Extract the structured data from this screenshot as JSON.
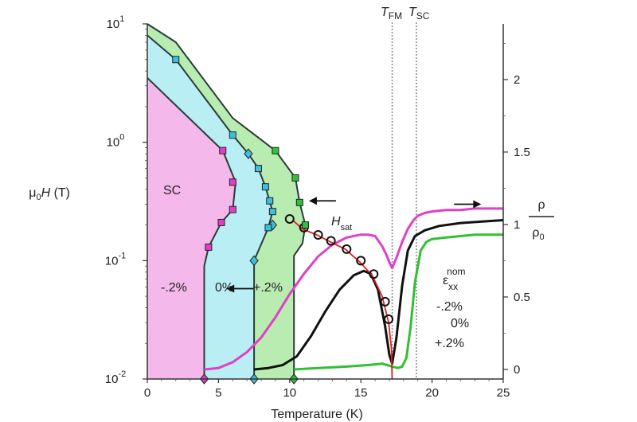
{
  "chart_data": {
    "type": "line",
    "title": "",
    "xlabel": "Temperature (K)",
    "x_range": [
      0,
      25
    ],
    "x_ticks": [
      "0",
      "5",
      "10",
      "15",
      "20",
      "25"
    ],
    "y_left": {
      "label_main": "μ",
      "label_sub": "0",
      "label_var": "H",
      "label_unit": " (T)",
      "scale": "log",
      "range": [
        0.01,
        10
      ],
      "ticks": [
        {
          "value": 0.01,
          "base": "10",
          "exp": "-2"
        },
        {
          "value": 0.1,
          "base": "10",
          "exp": "-1"
        },
        {
          "value": 1,
          "base": "10",
          "exp": "0"
        },
        {
          "value": 10,
          "base": "10",
          "exp": "1"
        }
      ]
    },
    "y_right": {
      "label_num": "ρ",
      "label_den": "ρ",
      "label_den_sub": "0",
      "range": [
        0,
        2.45
      ],
      "ticks": [
        "0",
        "0.5",
        "1",
        "1.5",
        "2"
      ]
    },
    "temperature_markers": [
      {
        "name": "T",
        "sub": "FM",
        "x": 17.2
      },
      {
        "name": "T",
        "sub": "SC",
        "x": 18.9
      }
    ],
    "regions": [
      {
        "label": "SC",
        "color": "#f5b8ea",
        "at": [
          2.5,
          0.45
        ]
      },
      {
        "label": "-.2%",
        "color": "#f5b8ea",
        "at": [
          2.0,
          0.034
        ]
      },
      {
        "label": "0%",
        "color": "#b8eef4",
        "at": [
          5.5,
          0.034
        ]
      },
      {
        "label": "+.2%",
        "color": "#b9ecb0",
        "at": [
          8.9,
          0.034
        ]
      }
    ],
    "boundaries": [
      {
        "strain": "-.2%",
        "color": "#e040c8",
        "x": [
          0,
          5.3,
          6.2,
          6.0,
          5.2,
          4.3,
          4.0,
          4.0
        ],
        "y": [
          3.5,
          0.85,
          0.46,
          0.27,
          0.21,
          0.13,
          0.09,
          0.01
        ]
      },
      {
        "strain": "0%",
        "color": "#3cc0dc",
        "x": [
          0,
          2.0,
          6.0,
          7.1,
          7.8,
          8.3,
          8.8,
          8.5,
          7.5,
          7.5
        ],
        "y": [
          8.0,
          5.0,
          1.15,
          0.8,
          0.6,
          0.42,
          0.26,
          0.19,
          0.1,
          0.01
        ]
      },
      {
        "strain": "+.2%",
        "color": "#30c040",
        "x": [
          0,
          2.0,
          6.0,
          9.0,
          10.4,
          10.7,
          11.1,
          10.9,
          10.3,
          10.3
        ],
        "y": [
          10,
          7.0,
          1.6,
          0.85,
          0.5,
          0.31,
          0.2,
          0.14,
          0.11,
          0.01
        ]
      }
    ],
    "boundary_markers": [
      {
        "series": "-.2%",
        "shape": "square",
        "x": 5.3,
        "y": 0.85
      },
      {
        "series": "-.2%",
        "shape": "square",
        "x": 6.0,
        "y": 0.46
      },
      {
        "series": "-.2%",
        "shape": "square",
        "x": 6.0,
        "y": 0.27
      },
      {
        "series": "-.2%",
        "shape": "square",
        "x": 5.2,
        "y": 0.21
      },
      {
        "series": "-.2%",
        "shape": "square",
        "x": 4.3,
        "y": 0.13
      },
      {
        "series": "-.2%",
        "shape": "diamond",
        "x": 4.0,
        "y": 0.01
      },
      {
        "series": "0%",
        "shape": "square",
        "x": 2.0,
        "y": 5.0
      },
      {
        "series": "0%",
        "shape": "square",
        "x": 6.0,
        "y": 1.15
      },
      {
        "series": "0%",
        "shape": "diamond",
        "x": 7.1,
        "y": 0.8
      },
      {
        "series": "0%",
        "shape": "square",
        "x": 7.8,
        "y": 0.6
      },
      {
        "series": "0%",
        "shape": "square",
        "x": 8.3,
        "y": 0.42
      },
      {
        "series": "0%",
        "shape": "square",
        "x": 8.6,
        "y": 0.32
      },
      {
        "series": "0%",
        "shape": "square",
        "x": 8.8,
        "y": 0.26
      },
      {
        "series": "0%",
        "shape": "diamond",
        "x": 8.8,
        "y": 0.2
      },
      {
        "series": "0%",
        "shape": "square",
        "x": 8.5,
        "y": 0.19
      },
      {
        "series": "0%",
        "shape": "diamond",
        "x": 7.5,
        "y": 0.1
      },
      {
        "series": "0%",
        "shape": "diamond",
        "x": 7.5,
        "y": 0.01
      },
      {
        "series": "+.2%",
        "shape": "square",
        "x": 9.0,
        "y": 0.85
      },
      {
        "series": "+.2%",
        "shape": "square",
        "x": 10.4,
        "y": 0.5
      },
      {
        "series": "+.2%",
        "shape": "square",
        "x": 10.7,
        "y": 0.31
      },
      {
        "series": "+.2%",
        "shape": "square",
        "x": 11.1,
        "y": 0.2
      },
      {
        "series": "+.2%",
        "shape": "diamond",
        "x": 10.3,
        "y": 0.01
      }
    ],
    "hsat": {
      "label": "H",
      "label_sub": "sat",
      "color": "#e02020",
      "x": [
        10.2,
        10.9,
        11.9,
        12.8,
        13.9,
        14.9,
        15.8,
        16.5,
        16.95,
        17.15,
        17.2
      ],
      "y": [
        0.22,
        0.185,
        0.165,
        0.145,
        0.125,
        0.098,
        0.075,
        0.05,
        0.03,
        0.018,
        0.01
      ],
      "circles_x": [
        10.0,
        11.0,
        12.0,
        12.9,
        14.0,
        15.0,
        15.9,
        16.7,
        16.95
      ],
      "circles_y": [
        0.225,
        0.19,
        0.165,
        0.147,
        0.125,
        0.1,
        0.077,
        0.045,
        0.032
      ]
    },
    "resistivity_title": "ε",
    "resistivity_title_sub": "xx",
    "resistivity_title_sup": "nom",
    "resistivity": [
      {
        "name": "-.2%",
        "color": "#e040c8",
        "x": [
          4.0,
          5.0,
          6.0,
          7.0,
          8.0,
          9.0,
          10.0,
          11.0,
          12.0,
          13.0,
          14.0,
          15.0,
          15.5,
          16.0,
          16.5,
          16.8,
          17.0,
          17.2,
          17.5,
          17.9,
          18.3,
          18.7,
          19.0,
          19.5,
          20.0,
          21.0,
          22.0,
          23.0,
          25.0
        ],
        "y": [
          0,
          0.01,
          0.05,
          0.12,
          0.22,
          0.36,
          0.52,
          0.66,
          0.78,
          0.86,
          0.91,
          0.93,
          0.93,
          0.92,
          0.85,
          0.79,
          0.74,
          0.7,
          0.77,
          0.88,
          0.97,
          1.03,
          1.06,
          1.08,
          1.09,
          1.1,
          1.1,
          1.11,
          1.11
        ]
      },
      {
        "name": "0%",
        "color": "#111111",
        "x": [
          7.5,
          8.5,
          9.5,
          10.5,
          11.5,
          12.5,
          13.5,
          14.5,
          15.2,
          15.7,
          16.2,
          16.7,
          17.0,
          17.2,
          17.5,
          17.9,
          18.3,
          18.8,
          19.5,
          20.5,
          22.0,
          23.5,
          25.0
        ],
        "y": [
          0,
          0.01,
          0.03,
          0.09,
          0.23,
          0.4,
          0.55,
          0.65,
          0.68,
          0.66,
          0.55,
          0.3,
          0.1,
          0.04,
          0.22,
          0.58,
          0.82,
          0.92,
          0.96,
          0.99,
          1.01,
          1.02,
          1.03
        ]
      },
      {
        "name": "+.2%",
        "color": "#30c030",
        "x": [
          10.3,
          12.0,
          14.0,
          15.5,
          16.5,
          17.2,
          17.6,
          17.9,
          18.2,
          18.5,
          18.8,
          19.2,
          19.6,
          20.0,
          21.0,
          22.0,
          23.0,
          25.0
        ],
        "y": [
          0,
          0.01,
          0.02,
          0.03,
          0.04,
          0.02,
          0.01,
          0.02,
          0.08,
          0.3,
          0.6,
          0.82,
          0.88,
          0.9,
          0.91,
          0.92,
          0.93,
          0.93
        ]
      }
    ],
    "arrows": [
      {
        "points": "left",
        "at": [
          6.5,
          0.058
        ]
      },
      {
        "points": "left",
        "at": [
          12.3,
          0.32
        ]
      },
      {
        "points": "right",
        "at": [
          22.5,
          1.14
        ]
      }
    ],
    "grid": false
  }
}
